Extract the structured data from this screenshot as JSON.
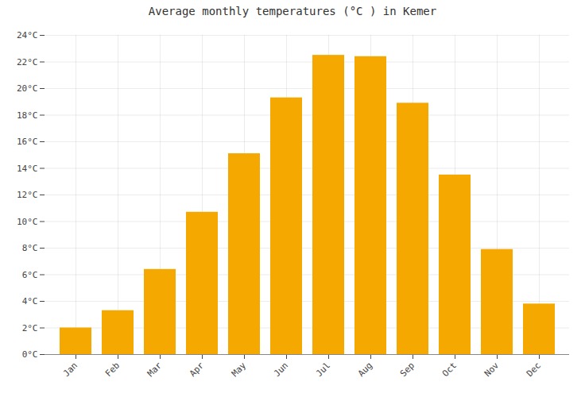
{
  "chart_data": {
    "type": "bar",
    "title": "Average monthly temperatures (°C ) in Kemer",
    "categories": [
      "Jan",
      "Feb",
      "Mar",
      "Apr",
      "May",
      "Jun",
      "Jul",
      "Aug",
      "Sep",
      "Oct",
      "Nov",
      "Dec"
    ],
    "values": [
      2.0,
      3.3,
      6.4,
      10.7,
      15.1,
      19.3,
      22.5,
      22.4,
      18.9,
      13.5,
      7.9,
      3.8
    ],
    "color": "#F5A800",
    "ylim": [
      0,
      24
    ],
    "yticks": [
      {
        "value": 0,
        "label": "0°C"
      },
      {
        "value": 2,
        "label": "2°C"
      },
      {
        "value": 4,
        "label": "4°C"
      },
      {
        "value": 6,
        "label": "6°C"
      },
      {
        "value": 8,
        "label": "8°C"
      },
      {
        "value": 10,
        "label": "10°C"
      },
      {
        "value": 12,
        "label": "12°C"
      },
      {
        "value": 14,
        "label": "14°C"
      },
      {
        "value": 16,
        "label": "16°C"
      },
      {
        "value": 18,
        "label": "18°C"
      },
      {
        "value": 20,
        "label": "20°C"
      },
      {
        "value": 22,
        "label": "22°C"
      },
      {
        "value": 24,
        "label": "24°C"
      }
    ],
    "grid": true
  }
}
